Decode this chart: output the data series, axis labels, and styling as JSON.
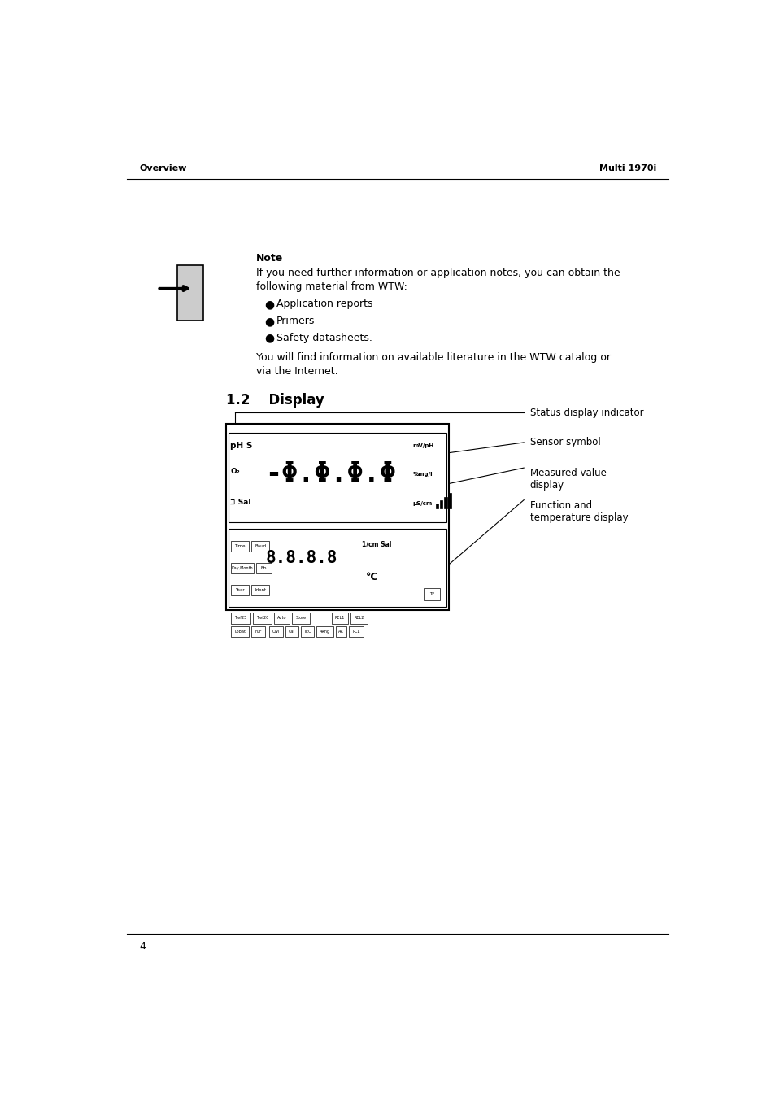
{
  "bg_color": "#ffffff",
  "header_left": "Overview",
  "header_right": "Multi 1970i",
  "footer_number": "4",
  "section_title": "1.2    Display",
  "note_title": "Note",
  "note_text1": "If you need further information or application notes, you can obtain the",
  "note_text2": "following material from WTW:",
  "bullets": [
    "Application reports",
    "Primers",
    "Safety datasheets."
  ],
  "para_text1": "You will find information on available literature in the WTW catalog or",
  "para_text2": "via the Internet.",
  "labels": [
    "Status display indicator",
    "Sensor symbol",
    "Measured value\ndisplay",
    "Function and\ntemperature display"
  ]
}
